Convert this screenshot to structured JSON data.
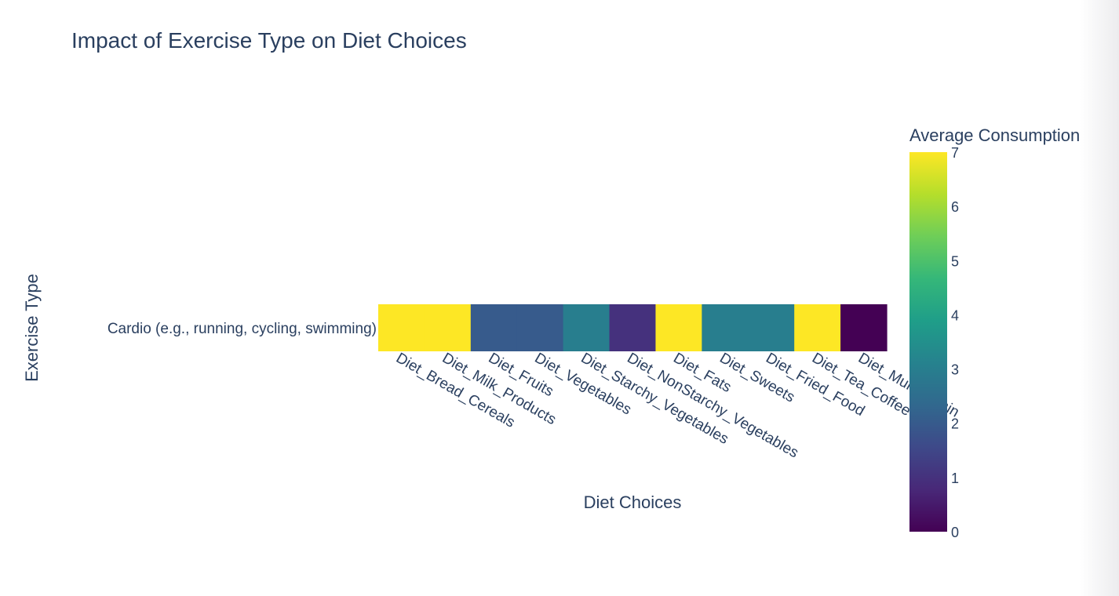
{
  "chart_data": {
    "type": "heatmap",
    "title": "Impact of Exercise Type on Diet Choices",
    "xlabel": "Diet Choices",
    "ylabel": "Exercise Type",
    "x": [
      "Diet_Bread_Cereals",
      "Diet_Milk_Products",
      "Diet_Fruits",
      "Diet_Vegetables",
      "Diet_Starchy_Vegetables",
      "Diet_NonStarchy_Vegetables",
      "Diet_Fats",
      "Diet_Sweets",
      "Diet_Fried_Food",
      "Diet_Tea_Coffee",
      "Diet_Multivitamin"
    ],
    "y": [
      "Cardio (e.g., running, cycling, swimming)"
    ],
    "z": [
      [
        7,
        7,
        2,
        2,
        3,
        1,
        7,
        3,
        3,
        7,
        0
      ]
    ],
    "colorscale": "Viridis",
    "zmin": 0,
    "zmax": 7,
    "colorbar": {
      "title": "Average Consumption",
      "ticks": [
        0,
        1,
        2,
        3,
        4,
        5,
        6,
        7
      ]
    }
  }
}
